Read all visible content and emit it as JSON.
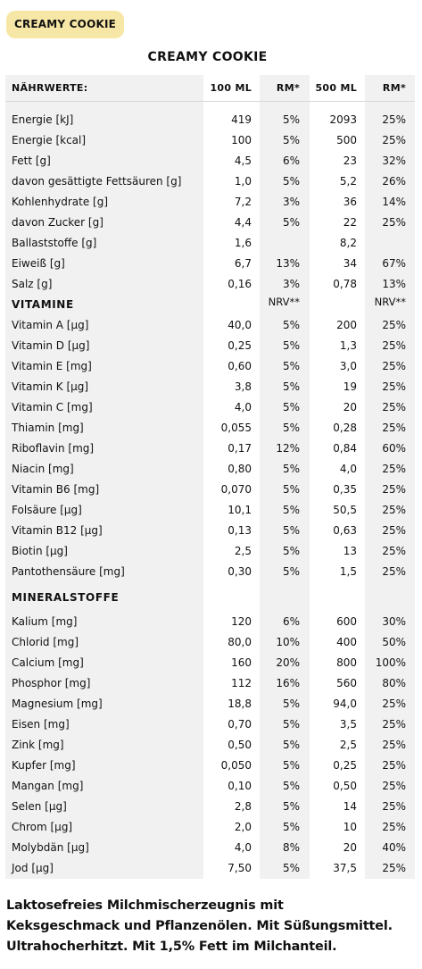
{
  "badge": "CREAMY COOKIE",
  "title": "CREAMY COOKIE",
  "header": {
    "label": "NÄHRWERTE:",
    "col1": "100 ML",
    "col2": "RM*",
    "col3": "500 ML",
    "col4": "RM*"
  },
  "nutrients": [
    [
      "Energie [kJ]",
      "419",
      "5%",
      "2093",
      "25%"
    ],
    [
      "Energie [kcal]",
      "100",
      "5%",
      "500",
      "25%"
    ],
    [
      "Fett [g]",
      "4,5",
      "6%",
      "23",
      "32%"
    ],
    [
      "davon gesättigte Fettsäuren [g]",
      "1,0",
      "5%",
      "5,2",
      "26%"
    ],
    [
      "Kohlenhydrate [g]",
      "7,2",
      "3%",
      "36",
      "14%"
    ],
    [
      "davon Zucker [g]",
      "4,4",
      "5%",
      "22",
      "25%"
    ],
    [
      "Ballaststoffe [g]",
      "1,6",
      "",
      "8,2",
      ""
    ],
    [
      "Eiweiß [g]",
      "6,7",
      "13%",
      "34",
      "67%"
    ],
    [
      "Salz [g]",
      "0,16",
      "3%",
      "0,78",
      "13%"
    ]
  ],
  "vitamins_section": {
    "label": "VITAMINE",
    "nrv1": "NRV**",
    "nrv2": "NRV**"
  },
  "vitamins": [
    [
      "Vitamin A [µg]",
      "40,0",
      "5%",
      "200",
      "25%"
    ],
    [
      "Vitamin D [µg]",
      "0,25",
      "5%",
      "1,3",
      "25%"
    ],
    [
      "Vitamin E [mg]",
      "0,60",
      "5%",
      "3,0",
      "25%"
    ],
    [
      "Vitamin K [µg]",
      "3,8",
      "5%",
      "19",
      "25%"
    ],
    [
      "Vitamin C [mg]",
      "4,0",
      "5%",
      "20",
      "25%"
    ],
    [
      "Thiamin [mg]",
      "0,055",
      "5%",
      "0,28",
      "25%"
    ],
    [
      "Riboflavin [mg]",
      "0,17",
      "12%",
      "0,84",
      "60%"
    ],
    [
      "Niacin [mg]",
      "0,80",
      "5%",
      "4,0",
      "25%"
    ],
    [
      "Vitamin B6 [mg]",
      "0,070",
      "5%",
      "0,35",
      "25%"
    ],
    [
      "Folsäure [µg]",
      "10,1",
      "5%",
      "50,5",
      "25%"
    ],
    [
      "Vitamin B12 [µg]",
      "0,13",
      "5%",
      "0,63",
      "25%"
    ],
    [
      "Biotin [µg]",
      "2,5",
      "5%",
      "13",
      "25%"
    ],
    [
      "Pantothensäure [mg]",
      "0,30",
      "5%",
      "1,5",
      "25%"
    ]
  ],
  "minerals_section": {
    "label": "MINERALSTOFFE"
  },
  "minerals": [
    [
      "Kalium [mg]",
      "120",
      "6%",
      "600",
      "30%"
    ],
    [
      "Chlorid [mg]",
      "80,0",
      "10%",
      "400",
      "50%"
    ],
    [
      "Calcium [mg]",
      "160",
      "20%",
      "800",
      "100%"
    ],
    [
      "Phosphor [mg]",
      "112",
      "16%",
      "560",
      "80%"
    ],
    [
      "Magnesium [mg]",
      "18,8",
      "5%",
      "94,0",
      "25%"
    ],
    [
      "Eisen [mg]",
      "0,70",
      "5%",
      "3,5",
      "25%"
    ],
    [
      "Zink [mg]",
      "0,50",
      "5%",
      "2,5",
      "25%"
    ],
    [
      "Kupfer [mg]",
      "0,050",
      "5%",
      "0,25",
      "25%"
    ],
    [
      "Mangan [mg]",
      "0,10",
      "5%",
      "0,50",
      "25%"
    ],
    [
      "Selen [µg]",
      "2,8",
      "5%",
      "14",
      "25%"
    ],
    [
      "Chrom [µg]",
      "2,0",
      "5%",
      "10",
      "25%"
    ],
    [
      "Molybdän [µg]",
      "4,0",
      "8%",
      "20",
      "40%"
    ],
    [
      "Jod [µg]",
      "7,50",
      "5%",
      "37,5",
      "25%"
    ]
  ],
  "footer": {
    "line1": "Laktosefreies Milchmischerzeugnis mit",
    "line2": "Keksgeschmack und Pflanzenölen. Mit Süßungsmittel.",
    "line3": "Ultrahocherhitzt. Mit 1,5% Fett im Milchanteil."
  },
  "colors": {
    "badge": "#f7e7a6",
    "column_shade": "#f1f1f1"
  }
}
